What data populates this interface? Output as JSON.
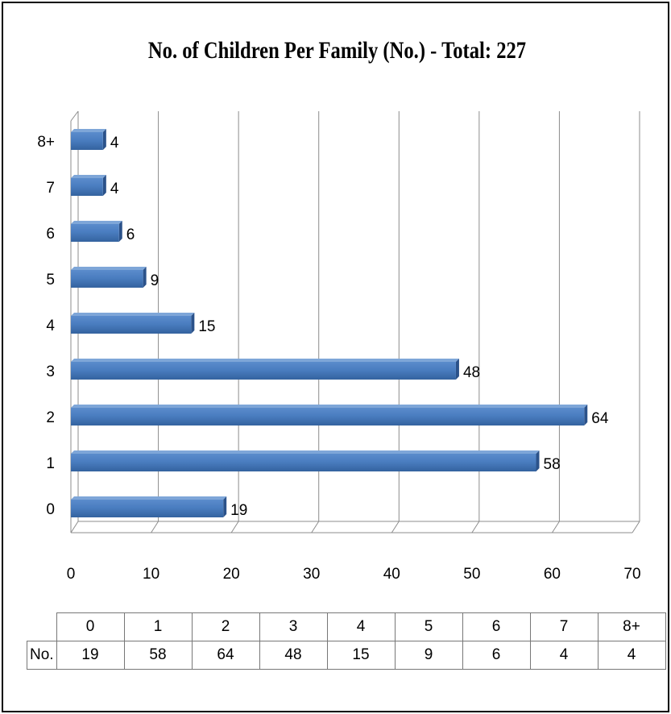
{
  "chart_data": {
    "type": "bar",
    "orientation": "horizontal",
    "title": "No. of Children Per Family (No.) - Total: 227",
    "categories": [
      "0",
      "1",
      "2",
      "3",
      "4",
      "5",
      "6",
      "7",
      "8+"
    ],
    "series": [
      {
        "name": "No.",
        "values": [
          19,
          58,
          64,
          48,
          15,
          9,
          6,
          4,
          4
        ]
      }
    ],
    "xlim": [
      0,
      70
    ],
    "x_ticks": [
      0,
      10,
      20,
      30,
      40,
      50,
      60,
      70
    ],
    "grid": true,
    "data_labels": true,
    "legend": "none",
    "data_table": true,
    "bar_color": "#4F81BD"
  }
}
